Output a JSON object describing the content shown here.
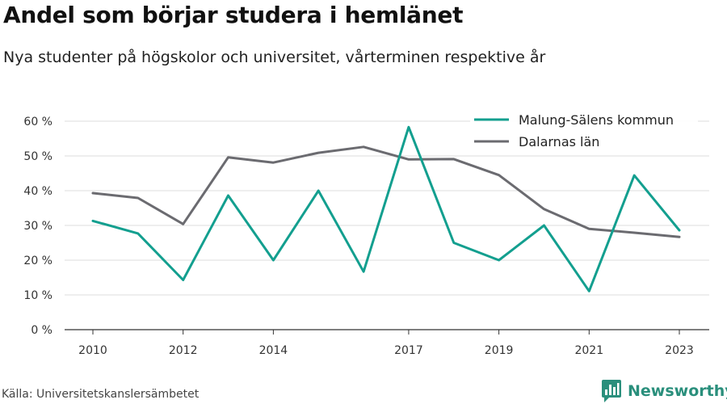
{
  "title": "Andel som börjar studera i hemlänet",
  "subtitle": "Nya studenter på högskolor och universitet, vårterminen respektive år",
  "source": "Källa: Universitetskanslersämbetet",
  "brand": {
    "name": "Newsworthy",
    "icon": "bar-chart-logo-icon",
    "color": "#2a8f7c"
  },
  "chart_data": {
    "type": "line",
    "x": [
      2010,
      2011,
      2012,
      2013,
      2014,
      2015,
      2016,
      2017,
      2018,
      2019,
      2020,
      2021,
      2022,
      2023
    ],
    "x_tick_labels": [
      "2010",
      "2012",
      "2014",
      "2017",
      "2019",
      "2021",
      "2023"
    ],
    "y_ticks": [
      0,
      10,
      20,
      30,
      40,
      50,
      60
    ],
    "y_tick_suffix": " %",
    "ylim": [
      0,
      60
    ],
    "grid": true,
    "legend_position": "top-right",
    "series": [
      {
        "name": "Malung-Sälens kommun",
        "color": "#139f8f",
        "values": [
          31.3,
          27.7,
          14.3,
          38.6,
          20.0,
          40.0,
          16.7,
          58.3,
          25.0,
          20.0,
          30.0,
          11.1,
          44.4,
          28.6
        ]
      },
      {
        "name": "Dalarnas län",
        "color": "#6b6b70",
        "values": [
          39.3,
          37.9,
          30.4,
          49.6,
          48.1,
          50.9,
          52.6,
          49.0,
          49.1,
          44.5,
          34.7,
          29.0,
          27.9,
          26.7
        ]
      }
    ]
  }
}
